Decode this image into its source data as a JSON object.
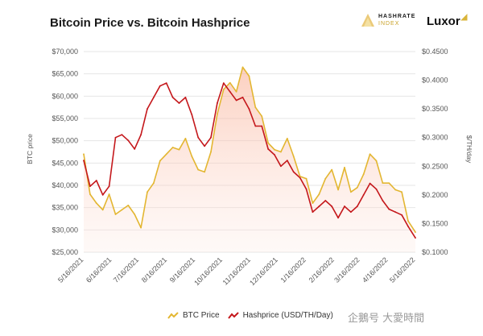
{
  "header": {
    "title": "Bitcoin Price vs. Bitcoin Hashprice",
    "hashrate_logo_line1": "HASHRATE",
    "hashrate_logo_line2": "INDEX",
    "luxor_logo": "Luxor"
  },
  "watermark": "企鵝号 大愛時間",
  "colors": {
    "btc": "#e3b631",
    "hashprice": "#c4171b",
    "fill": "#f6c7b6"
  },
  "chart_data": {
    "type": "line",
    "title": "Bitcoin Price vs. Bitcoin Hashprice",
    "x": [
      "5/16/2021",
      "5/23/2021",
      "5/30/2021",
      "6/6/2021",
      "6/13/2021",
      "6/20/2021",
      "6/27/2021",
      "7/4/2021",
      "7/11/2021",
      "7/18/2021",
      "7/25/2021",
      "8/1/2021",
      "8/8/2021",
      "8/15/2021",
      "8/22/2021",
      "8/29/2021",
      "9/5/2021",
      "9/12/2021",
      "9/19/2021",
      "9/26/2021",
      "10/3/2021",
      "10/10/2021",
      "10/17/2021",
      "10/24/2021",
      "10/31/2021",
      "11/7/2021",
      "11/14/2021",
      "11/21/2021",
      "11/28/2021",
      "12/5/2021",
      "12/12/2021",
      "12/19/2021",
      "12/26/2021",
      "1/2/2022",
      "1/9/2022",
      "1/16/2022",
      "1/23/2022",
      "1/30/2022",
      "2/6/2022",
      "2/13/2022",
      "2/20/2022",
      "2/27/2022",
      "3/6/2022",
      "3/13/2022",
      "3/20/2022",
      "3/27/2022",
      "4/3/2022",
      "4/10/2022",
      "4/17/2022",
      "4/24/2022",
      "5/1/2022",
      "5/8/2022",
      "5/16/2022"
    ],
    "x_tick_labels": [
      "5/16/2021",
      "6/16/2021",
      "7/16/2021",
      "8/16/2021",
      "9/16/2021",
      "10/16/2021",
      "11/16/2021",
      "12/16/2021",
      "1/16/2022",
      "2/16/2022",
      "3/16/2022",
      "4/16/2022",
      "5/16/2022"
    ],
    "series": [
      {
        "name": "BTC Price",
        "axis": "left",
        "values": [
          47000,
          38000,
          36000,
          34500,
          38000,
          33500,
          34500,
          35500,
          33500,
          30500,
          38500,
          40500,
          45500,
          47000,
          48500,
          48000,
          50500,
          46500,
          43500,
          43000,
          47500,
          56000,
          61500,
          63000,
          61000,
          66500,
          64500,
          57500,
          55500,
          49500,
          48000,
          47500,
          50500,
          46500,
          42000,
          41500,
          36000,
          38000,
          41500,
          43500,
          39000,
          44000,
          38500,
          39500,
          42500,
          47000,
          45500,
          40500,
          40500,
          39000,
          38500,
          32000,
          29500
        ]
      },
      {
        "name": "Hashprice (USD/TH/Day)",
        "axis": "right",
        "values": [
          0.26,
          0.215,
          0.225,
          0.2,
          0.215,
          0.3,
          0.305,
          0.295,
          0.28,
          0.305,
          0.35,
          0.37,
          0.39,
          0.395,
          0.37,
          0.36,
          0.37,
          0.34,
          0.3,
          0.285,
          0.3,
          0.36,
          0.395,
          0.38,
          0.365,
          0.37,
          0.35,
          0.32,
          0.32,
          0.28,
          0.27,
          0.25,
          0.26,
          0.24,
          0.23,
          0.21,
          0.17,
          0.18,
          0.19,
          0.18,
          0.16,
          0.18,
          0.17,
          0.18,
          0.2,
          0.22,
          0.21,
          0.19,
          0.175,
          0.17,
          0.165,
          0.145,
          0.125
        ]
      }
    ],
    "left_axis": {
      "label": "BTC price",
      "ticks": [
        "$70,000",
        "$65,000",
        "$60,000",
        "$55,000",
        "$50,000",
        "$45,000",
        "$40,000",
        "$35,000",
        "$30,000",
        "$25,000"
      ],
      "range": [
        25000,
        70000
      ]
    },
    "right_axis": {
      "label": "$/TH/day",
      "ticks": [
        "$0.4500",
        "$0.4000",
        "$0.3500",
        "$0.3000",
        "$0.2500",
        "$0.2000",
        "$0.1500",
        "$0.1000"
      ],
      "range": [
        0.1,
        0.45
      ]
    },
    "grid": true,
    "legend": "bottom"
  },
  "legend": {
    "btc": "BTC Price",
    "hashprice": "Hashprice (USD/TH/Day)"
  }
}
